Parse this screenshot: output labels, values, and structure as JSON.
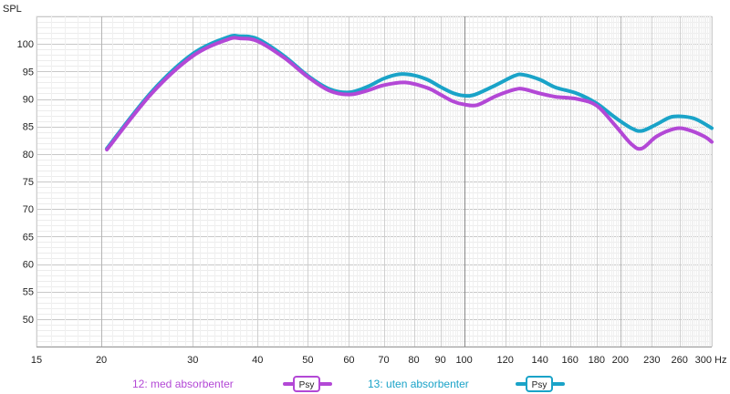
{
  "chart_data": {
    "type": "line",
    "title": "",
    "ylabel": "SPL",
    "xlabel": "Hz",
    "x_scale": "log",
    "xlim": [
      15,
      300
    ],
    "ylim": [
      45,
      105
    ],
    "y_ticks": [
      50,
      55,
      60,
      65,
      70,
      75,
      80,
      85,
      90,
      95,
      100
    ],
    "x_ticks": [
      15,
      20,
      30,
      40,
      50,
      60,
      70,
      80,
      90,
      100,
      120,
      140,
      160,
      180,
      200,
      230,
      260,
      300
    ],
    "grid": true,
    "legend_position": "bottom",
    "series": [
      {
        "name": "12: med absorbenter",
        "badge": "Psy",
        "color": "#b348d6",
        "points": [
          [
            20.5,
            80.8
          ],
          [
            25,
            91
          ],
          [
            30,
            97.8
          ],
          [
            35,
            100.8
          ],
          [
            37,
            101
          ],
          [
            40,
            100.5
          ],
          [
            45,
            97.5
          ],
          [
            50,
            94
          ],
          [
            55,
            91.5
          ],
          [
            60,
            90.8
          ],
          [
            65,
            91.5
          ],
          [
            70,
            92.5
          ],
          [
            77,
            93
          ],
          [
            85,
            92
          ],
          [
            90,
            90.8
          ],
          [
            95,
            89.6
          ],
          [
            100,
            89
          ],
          [
            106,
            88.9
          ],
          [
            115,
            90.5
          ],
          [
            125,
            91.7
          ],
          [
            130,
            91.8
          ],
          [
            140,
            91
          ],
          [
            150,
            90.4
          ],
          [
            165,
            90
          ],
          [
            180,
            88.8
          ],
          [
            195,
            85.3
          ],
          [
            210,
            81.8
          ],
          [
            220,
            81
          ],
          [
            235,
            83.2
          ],
          [
            255,
            84.6
          ],
          [
            270,
            84.4
          ],
          [
            290,
            83.2
          ],
          [
            300,
            82.2
          ]
        ]
      },
      {
        "name": "13: uten absorbenter",
        "badge": "Psy",
        "color": "#1aa3c8",
        "points": [
          [
            20.5,
            81
          ],
          [
            25,
            91.3
          ],
          [
            30,
            98.2
          ],
          [
            35,
            101.2
          ],
          [
            37,
            101.4
          ],
          [
            40,
            100.9
          ],
          [
            45,
            97.8
          ],
          [
            50,
            94.2
          ],
          [
            55,
            91.8
          ],
          [
            60,
            91.2
          ],
          [
            65,
            92.2
          ],
          [
            70,
            93.7
          ],
          [
            75,
            94.5
          ],
          [
            80,
            94.3
          ],
          [
            85,
            93.5
          ],
          [
            90,
            92.2
          ],
          [
            95,
            91.1
          ],
          [
            100,
            90.6
          ],
          [
            105,
            90.8
          ],
          [
            115,
            92.5
          ],
          [
            125,
            94.2
          ],
          [
            130,
            94.4
          ],
          [
            140,
            93.5
          ],
          [
            150,
            92.1
          ],
          [
            165,
            91
          ],
          [
            180,
            89.2
          ],
          [
            195,
            86.7
          ],
          [
            210,
            84.7
          ],
          [
            220,
            84.2
          ],
          [
            235,
            85.4
          ],
          [
            250,
            86.7
          ],
          [
            265,
            86.8
          ],
          [
            280,
            86.3
          ],
          [
            300,
            84.7
          ]
        ]
      }
    ]
  }
}
